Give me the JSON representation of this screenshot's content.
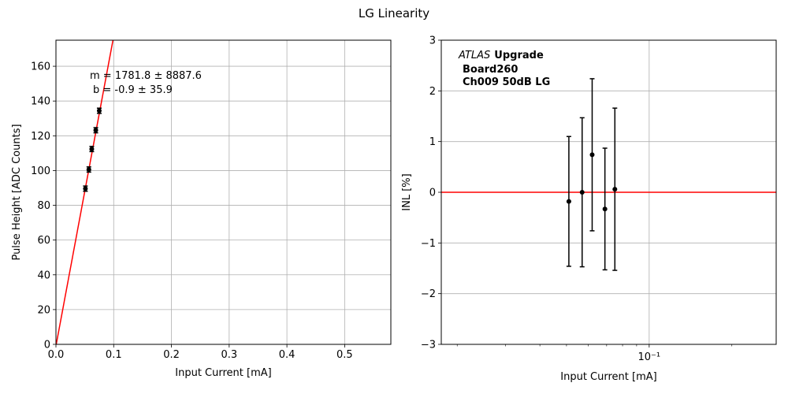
{
  "figure_title": "LG Linearity",
  "chart_data": [
    {
      "type": "scatter",
      "xlabel": "Input Current [mA]",
      "ylabel": "Pulse Height [ADC Counts]",
      "xlim": [
        0.0,
        0.58
      ],
      "ylim": [
        0,
        175
      ],
      "xticks": [
        0.0,
        0.1,
        0.2,
        0.3,
        0.4,
        0.5
      ],
      "xtick_labels": [
        "0.0",
        "0.1",
        "0.2",
        "0.3",
        "0.4",
        "0.5"
      ],
      "yticks": [
        0,
        20,
        40,
        60,
        80,
        100,
        120,
        140,
        160
      ],
      "ytick_labels": [
        "0",
        "20",
        "40",
        "60",
        "80",
        "100",
        "120",
        "140",
        "160"
      ],
      "grid": true,
      "points": [
        {
          "x": 0.051,
          "y": 89.6,
          "yerr": 1.5
        },
        {
          "x": 0.057,
          "y": 100.6,
          "yerr": 1.5
        },
        {
          "x": 0.062,
          "y": 112.4,
          "yerr": 1.5
        },
        {
          "x": 0.069,
          "y": 123.2,
          "yerr": 1.5
        },
        {
          "x": 0.075,
          "y": 134.4,
          "yerr": 1.5
        }
      ],
      "fit_line": {
        "slope": 1781.8,
        "intercept": -0.9
      },
      "annotation": [
        "m = 1781.8 ± 8887.6",
        "b = -0.9 ± 35.9"
      ],
      "colors": {
        "points": "#000000",
        "fit": "#ff0000",
        "grid": "#b0b0b0"
      }
    },
    {
      "type": "scatter",
      "xscale": "log",
      "xlabel": "Input Current [mA]",
      "ylabel": "INL [%]",
      "xlim": [
        0.0175,
        0.29
      ],
      "ylim": [
        -3,
        3
      ],
      "yticks": [
        -3,
        -2,
        -1,
        0,
        1,
        2,
        3
      ],
      "ytick_labels": [
        "−3",
        "−2",
        "−1",
        "0",
        "1",
        "2",
        "3"
      ],
      "xtick_major_label": "10⁻¹",
      "grid": true,
      "points": [
        {
          "x": 0.051,
          "y": -0.18,
          "yerr": 1.28
        },
        {
          "x": 0.057,
          "y": 0.0,
          "yerr": 1.47
        },
        {
          "x": 0.062,
          "y": 0.74,
          "yerr": 1.5
        },
        {
          "x": 0.069,
          "y": -0.33,
          "yerr": 1.2
        },
        {
          "x": 0.075,
          "y": 0.06,
          "yerr": 1.6
        }
      ],
      "reference_line": 0,
      "annotation": {
        "italic": "ATLAS",
        "bold": "Upgrade",
        "lines": [
          "Board260",
          "Ch009 50dB LG"
        ]
      },
      "colors": {
        "points": "#000000",
        "reference": "#ff0000",
        "grid": "#b0b0b0"
      }
    }
  ]
}
